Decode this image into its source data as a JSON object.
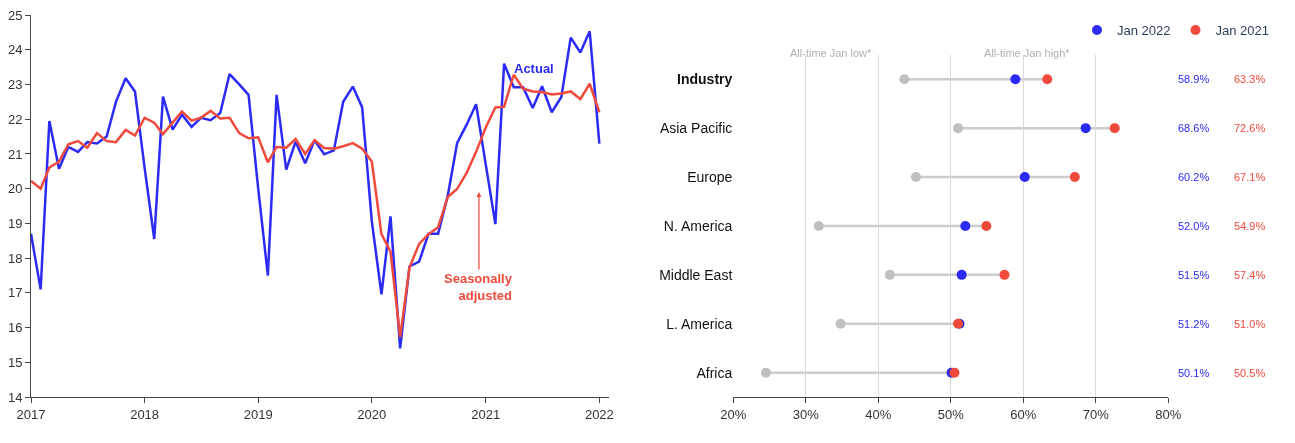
{
  "chart_data": [
    {
      "type": "line",
      "x": [
        "2017-01",
        "2017-02",
        "2017-03",
        "2017-04",
        "2017-05",
        "2017-06",
        "2017-07",
        "2017-08",
        "2017-09",
        "2017-10",
        "2017-11",
        "2017-12",
        "2018-01",
        "2018-02",
        "2018-03",
        "2018-04",
        "2018-05",
        "2018-06",
        "2018-07",
        "2018-08",
        "2018-09",
        "2018-10",
        "2018-11",
        "2018-12",
        "2019-01",
        "2019-02",
        "2019-03",
        "2019-04",
        "2019-05",
        "2019-06",
        "2019-07",
        "2019-08",
        "2019-09",
        "2019-10",
        "2019-11",
        "2019-12",
        "2020-01",
        "2020-02",
        "2020-03",
        "2020-04",
        "2020-05",
        "2020-06",
        "2020-07",
        "2020-08",
        "2020-09",
        "2020-10",
        "2020-11",
        "2020-12",
        "2021-01",
        "2021-02",
        "2021-03",
        "2021-04",
        "2021-05",
        "2021-06",
        "2021-07",
        "2021-08",
        "2021-09",
        "2021-10",
        "2021-11",
        "2021-12",
        "2022-01"
      ],
      "series": [
        {
          "color": "#2b2bf5",
          "values": [
            18.7,
            17.1,
            21.95,
            20.57,
            21.2,
            21.06,
            21.34,
            21.3,
            21.5,
            22.5,
            23.18,
            22.8,
            20.6,
            18.55,
            22.65,
            21.7,
            22.13,
            21.78,
            22.04,
            21.97,
            22.18,
            23.3,
            23.0,
            22.7,
            20.0,
            17.5,
            22.7,
            20.55,
            21.35,
            20.73,
            21.39,
            20.99,
            21.1,
            22.5,
            22.94,
            22.34,
            19.06,
            16.96,
            19.2,
            15.4,
            17.76,
            17.9,
            18.7,
            18.7,
            19.8,
            21.31,
            21.85,
            22.43,
            20.7,
            18.98,
            23.6,
            22.92,
            22.92,
            22.32,
            22.95,
            22.2,
            22.64,
            24.35,
            23.92,
            24.53,
            21.3
          ]
        },
        {
          "color": "#f04a3c",
          "values": [
            20.22,
            20.0,
            20.61,
            20.78,
            21.28,
            21.37,
            21.18,
            21.6,
            21.37,
            21.34,
            21.69,
            21.53,
            22.04,
            21.9,
            21.57,
            21.9,
            22.22,
            21.96,
            22.04,
            22.24,
            22.02,
            22.04,
            21.6,
            21.45,
            21.48,
            20.76,
            21.2,
            21.18,
            21.43,
            21.0,
            21.4,
            21.17,
            21.15,
            21.22,
            21.31,
            21.15,
            20.78,
            18.69,
            18.19,
            15.73,
            17.73,
            18.41,
            18.69,
            18.89,
            19.76,
            19.99,
            20.46,
            21.06,
            21.76,
            22.34,
            22.36,
            23.28,
            22.88,
            22.8,
            22.78,
            22.71,
            22.74,
            22.8,
            22.58,
            23.02,
            22.2
          ]
        }
      ],
      "xlim": [
        "2017-01-01",
        "2022-02-01"
      ],
      "xticks": [
        "2017",
        "2018",
        "2019",
        "2020",
        "2021",
        "2022"
      ],
      "ylim": [
        14,
        25
      ],
      "yticks": [
        14,
        15,
        16,
        17,
        18,
        19,
        20,
        21,
        22,
        23,
        24,
        25
      ],
      "grid": false,
      "legend": false,
      "annotations": [
        "Actual",
        "Seasonally adjusted"
      ]
    },
    {
      "type": "scatter",
      "orientation": "horizontal",
      "categories": [
        "Industry",
        "Asia Pacific",
        "Europe",
        "N. America",
        "Middle East",
        "L. America",
        "Africa"
      ],
      "series": [
        {
          "color": "#c0c0c0",
          "values": [
            43.6,
            51.0,
            45.2,
            31.8,
            41.6,
            34.8,
            24.5
          ]
        },
        {
          "name": "Jan 2022",
          "color": "#2b2bf5",
          "values": [
            58.9,
            68.6,
            60.2,
            52.0,
            51.5,
            51.2,
            50.1
          ],
          "value_labels": [
            "58.9%",
            "68.6%",
            "60.2%",
            "52.0%",
            "51.5%",
            "51.2%",
            "50.1%"
          ]
        },
        {
          "name": "Jan 2021",
          "color": "#f04a3c",
          "values": [
            63.3,
            72.6,
            67.1,
            54.9,
            57.4,
            51.0,
            50.5
          ],
          "value_labels": [
            "63.3%",
            "72.6%",
            "67.1%",
            "54.9%",
            "57.4%",
            "51.0%",
            "50.5%"
          ]
        }
      ],
      "xlim": [
        20,
        80
      ],
      "xticks": [
        {
          "value": 20,
          "label": "20%"
        },
        {
          "value": 30,
          "label": "30%"
        },
        {
          "value": 40,
          "label": "40%"
        },
        {
          "value": 50,
          "label": "50%"
        },
        {
          "value": 60,
          "label": "60%"
        },
        {
          "value": 70,
          "label": "70%"
        },
        {
          "value": 80,
          "label": "80%"
        }
      ],
      "grid": "x",
      "legend": "top right",
      "marker": "circle",
      "annotations": [
        "All-time Jan low*",
        "All-time Jan high*"
      ]
    }
  ]
}
